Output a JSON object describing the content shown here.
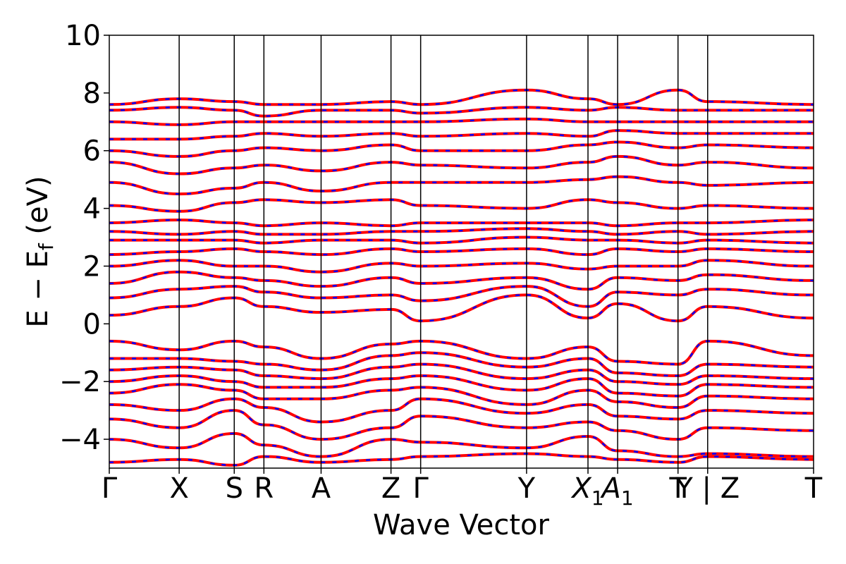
{
  "chart_data": {
    "type": "line",
    "title": "",
    "xlabel": "Wave Vector",
    "ylabel_main": "E − E",
    "ylabel_sub": "f",
    "ylabel_unit": " (eV)",
    "ylim": [
      -5,
      10
    ],
    "yticks": [
      "−4",
      "−2",
      "0",
      "2",
      "4",
      "6",
      "8",
      "10"
    ],
    "ytick_values": [
      -4,
      -2,
      0,
      2,
      4,
      6,
      8,
      10
    ],
    "x_range": [
      0,
      10
    ],
    "kpath": [
      {
        "label": "Γ",
        "x": 0
      },
      {
        "label": "X",
        "x": 0.66
      },
      {
        "label": "S",
        "x": 1.18
      },
      {
        "label": "R",
        "x": 1.46
      },
      {
        "label": "A",
        "x": 2.0
      },
      {
        "label": "Z",
        "x": 2.66
      },
      {
        "label": "Γ",
        "x": 2.94
      },
      {
        "label": "Y",
        "x": 3.94
      },
      {
        "label": "X",
        "sub": "1",
        "x": 4.52
      },
      {
        "label": "A",
        "sub": "1",
        "x": 4.8
      },
      {
        "label": "T",
        "x": 5.37
      },
      {
        "label": "Y | Z",
        "x": 5.65
      },
      {
        "label": "T",
        "x": 6.65
      }
    ],
    "series": [
      {
        "color": "#ff0000",
        "style": "solid"
      },
      {
        "color": "#0000ff",
        "style": "dashed"
      }
    ],
    "bands": [
      [
        -4.8,
        -4.7,
        -4.9,
        -4.6,
        -4.8,
        -4.7,
        -4.6,
        -4.5,
        -4.6,
        -4.7,
        -4.8,
        -4.6,
        -4.7
      ],
      [
        -4.0,
        -4.3,
        -3.8,
        -4.2,
        -4.6,
        -4.0,
        -4.1,
        -4.3,
        -3.9,
        -4.4,
        -4.6,
        -4.5,
        -4.6
      ],
      [
        -3.3,
        -3.6,
        -3.0,
        -3.5,
        -4.0,
        -3.6,
        -3.2,
        -3.6,
        -3.4,
        -3.7,
        -4.0,
        -3.6,
        -3.7
      ],
      [
        -2.8,
        -3.0,
        -2.6,
        -2.9,
        -3.4,
        -3.0,
        -2.6,
        -3.1,
        -2.8,
        -3.2,
        -3.3,
        -3.0,
        -3.1
      ],
      [
        -2.4,
        -2.1,
        -2.3,
        -2.6,
        -2.6,
        -2.3,
        -2.2,
        -2.8,
        -2.3,
        -2.7,
        -2.9,
        -2.5,
        -2.6
      ],
      [
        -2.0,
        -1.8,
        -2.0,
        -2.2,
        -2.2,
        -1.9,
        -1.8,
        -2.3,
        -1.9,
        -2.4,
        -2.5,
        -2.1,
        -2.2
      ],
      [
        -1.6,
        -1.5,
        -1.6,
        -1.8,
        -1.9,
        -1.5,
        -1.4,
        -1.9,
        -1.6,
        -2.0,
        -2.1,
        -1.8,
        -1.9
      ],
      [
        -1.2,
        -1.2,
        -1.3,
        -1.4,
        -1.6,
        -1.1,
        -1.0,
        -1.5,
        -1.2,
        -1.7,
        -1.8,
        -1.4,
        -1.5
      ],
      [
        -0.6,
        -0.9,
        -0.6,
        -0.8,
        -1.2,
        -0.7,
        -0.6,
        -1.2,
        -0.8,
        -1.3,
        -1.4,
        -0.6,
        -1.1
      ],
      [
        0.3,
        0.6,
        0.9,
        0.6,
        0.4,
        0.5,
        0.1,
        1.0,
        0.2,
        0.7,
        0.1,
        0.6,
        0.2
      ],
      [
        0.9,
        1.2,
        1.3,
        1.1,
        0.9,
        1.0,
        0.8,
        1.3,
        0.6,
        1.1,
        1.0,
        1.2,
        1.0
      ],
      [
        1.4,
        1.8,
        1.6,
        1.5,
        1.3,
        1.6,
        1.4,
        1.6,
        1.2,
        1.6,
        1.5,
        1.7,
        1.5
      ],
      [
        2.0,
        2.2,
        2.0,
        2.0,
        1.8,
        2.1,
        2.0,
        2.1,
        1.9,
        2.0,
        2.0,
        2.2,
        2.0
      ],
      [
        2.4,
        2.5,
        2.6,
        2.5,
        2.4,
        2.6,
        2.5,
        2.6,
        2.4,
        2.6,
        2.5,
        2.6,
        2.5
      ],
      [
        2.9,
        2.9,
        2.9,
        2.8,
        2.9,
        2.9,
        2.8,
        3.0,
        2.9,
        2.9,
        2.8,
        2.9,
        2.8
      ],
      [
        3.2,
        3.1,
        3.2,
        3.1,
        3.1,
        3.2,
        3.2,
        3.3,
        3.2,
        3.1,
        3.2,
        3.1,
        3.2
      ],
      [
        3.5,
        3.6,
        3.5,
        3.4,
        3.5,
        3.4,
        3.5,
        3.5,
        3.5,
        3.4,
        3.5,
        3.5,
        3.6
      ],
      [
        4.1,
        3.9,
        4.2,
        4.3,
        4.2,
        4.3,
        4.1,
        4.0,
        4.3,
        4.2,
        4.0,
        4.1,
        4.0
      ],
      [
        4.9,
        4.5,
        4.7,
        4.9,
        4.6,
        4.9,
        4.9,
        4.9,
        5.0,
        5.1,
        4.9,
        4.8,
        4.9
      ],
      [
        5.6,
        5.2,
        5.4,
        5.5,
        5.3,
        5.6,
        5.5,
        5.4,
        5.6,
        5.8,
        5.5,
        5.6,
        5.4
      ],
      [
        6.0,
        5.8,
        6.0,
        6.1,
        6.0,
        6.2,
        6.0,
        6.0,
        6.2,
        6.3,
        6.1,
        6.2,
        6.1
      ],
      [
        6.4,
        6.4,
        6.5,
        6.6,
        6.5,
        6.6,
        6.5,
        6.6,
        6.5,
        6.7,
        6.6,
        6.6,
        6.6
      ],
      [
        7.0,
        6.9,
        7.0,
        7.0,
        7.0,
        7.0,
        7.0,
        7.1,
        7.0,
        7.0,
        7.0,
        7.0,
        7.0
      ],
      [
        7.4,
        7.5,
        7.4,
        7.2,
        7.4,
        7.4,
        7.3,
        7.5,
        7.4,
        7.5,
        7.4,
        7.4,
        7.4
      ],
      [
        7.6,
        7.8,
        7.7,
        7.6,
        7.6,
        7.7,
        7.6,
        8.1,
        7.8,
        7.6,
        8.1,
        7.7,
        7.6
      ]
    ]
  }
}
